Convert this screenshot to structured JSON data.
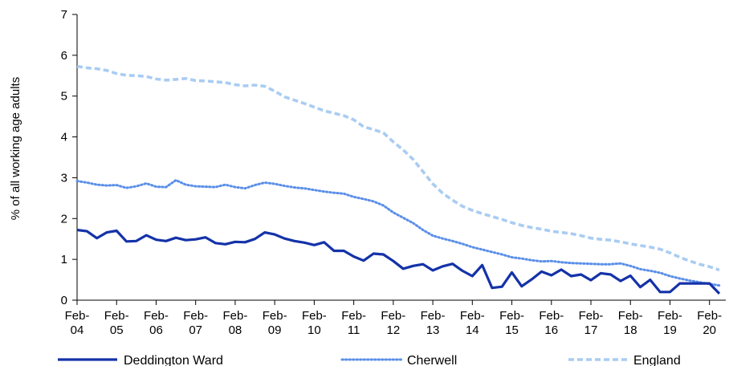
{
  "chart_data": {
    "type": "line",
    "title": "",
    "xlabel": "",
    "ylabel": "% of all working age adults",
    "ylim": [
      0,
      7
    ],
    "yticks": [
      "0",
      "1",
      "2",
      "3",
      "4",
      "5",
      "6",
      "7"
    ],
    "xlim": [
      2004,
      2020.25
    ],
    "xticks": [
      {
        "x": 2004,
        "line1": "Feb-",
        "line2": "04"
      },
      {
        "x": 2005,
        "line1": "Feb-",
        "line2": "05"
      },
      {
        "x": 2006,
        "line1": "Feb-",
        "line2": "06"
      },
      {
        "x": 2007,
        "line1": "Feb-",
        "line2": "07"
      },
      {
        "x": 2008,
        "line1": "Feb-",
        "line2": "08"
      },
      {
        "x": 2009,
        "line1": "Feb-",
        "line2": "09"
      },
      {
        "x": 2010,
        "line1": "Feb-",
        "line2": "10"
      },
      {
        "x": 2011,
        "line1": "Feb-",
        "line2": "11"
      },
      {
        "x": 2012,
        "line1": "Feb-",
        "line2": "12"
      },
      {
        "x": 2013,
        "line1": "Feb-",
        "line2": "13"
      },
      {
        "x": 2014,
        "line1": "Feb-",
        "line2": "14"
      },
      {
        "x": 2015,
        "line1": "Feb-",
        "line2": "15"
      },
      {
        "x": 2016,
        "line1": "Feb-",
        "line2": "16"
      },
      {
        "x": 2017,
        "line1": "Feb-",
        "line2": "17"
      },
      {
        "x": 2018,
        "line1": "Feb-",
        "line2": "18"
      },
      {
        "x": 2019,
        "line1": "Feb-",
        "line2": "19"
      },
      {
        "x": 2020,
        "line1": "Feb-",
        "line2": "20"
      }
    ],
    "grid": false,
    "legend": "bottom",
    "series": [
      {
        "name": "Deddington Ward",
        "color": "#1432a8",
        "style": "solid",
        "points": [
          [
            2004.0,
            1.72
          ],
          [
            2004.25,
            1.69
          ],
          [
            2004.5,
            1.52
          ],
          [
            2004.75,
            1.66
          ],
          [
            2005.0,
            1.7
          ],
          [
            2005.25,
            1.44
          ],
          [
            2005.5,
            1.45
          ],
          [
            2005.75,
            1.59
          ],
          [
            2006.0,
            1.48
          ],
          [
            2006.25,
            1.45
          ],
          [
            2006.5,
            1.53
          ],
          [
            2006.75,
            1.47
          ],
          [
            2007.0,
            1.49
          ],
          [
            2007.25,
            1.54
          ],
          [
            2007.5,
            1.4
          ],
          [
            2007.75,
            1.37
          ],
          [
            2008.0,
            1.43
          ],
          [
            2008.25,
            1.42
          ],
          [
            2008.5,
            1.5
          ],
          [
            2008.75,
            1.66
          ],
          [
            2009.0,
            1.61
          ],
          [
            2009.25,
            1.51
          ],
          [
            2009.5,
            1.45
          ],
          [
            2009.75,
            1.41
          ],
          [
            2010.0,
            1.35
          ],
          [
            2010.25,
            1.42
          ],
          [
            2010.5,
            1.21
          ],
          [
            2010.75,
            1.21
          ],
          [
            2011.0,
            1.07
          ],
          [
            2011.25,
            0.97
          ],
          [
            2011.5,
            1.14
          ],
          [
            2011.75,
            1.12
          ],
          [
            2012.0,
            0.96
          ],
          [
            2012.25,
            0.77
          ],
          [
            2012.5,
            0.84
          ],
          [
            2012.75,
            0.88
          ],
          [
            2013.0,
            0.73
          ],
          [
            2013.25,
            0.83
          ],
          [
            2013.5,
            0.89
          ],
          [
            2013.75,
            0.72
          ],
          [
            2014.0,
            0.59
          ],
          [
            2014.25,
            0.86
          ],
          [
            2014.5,
            0.3
          ],
          [
            2014.75,
            0.33
          ],
          [
            2015.0,
            0.68
          ],
          [
            2015.25,
            0.34
          ],
          [
            2015.5,
            0.51
          ],
          [
            2015.75,
            0.7
          ],
          [
            2016.0,
            0.61
          ],
          [
            2016.25,
            0.75
          ],
          [
            2016.5,
            0.59
          ],
          [
            2016.75,
            0.63
          ],
          [
            2017.0,
            0.49
          ],
          [
            2017.25,
            0.66
          ],
          [
            2017.5,
            0.63
          ],
          [
            2017.75,
            0.47
          ],
          [
            2018.0,
            0.6
          ],
          [
            2018.25,
            0.32
          ],
          [
            2018.5,
            0.5
          ],
          [
            2018.75,
            0.2
          ],
          [
            2019.0,
            0.2
          ],
          [
            2019.25,
            0.41
          ],
          [
            2019.5,
            0.41
          ],
          [
            2019.75,
            0.41
          ],
          [
            2020.0,
            0.41
          ],
          [
            2020.25,
            0.16
          ]
        ]
      },
      {
        "name": "Cherwell",
        "color": "#5b8fe8",
        "style": "dotted",
        "points": [
          [
            2004.0,
            2.92
          ],
          [
            2004.25,
            2.88
          ],
          [
            2004.5,
            2.83
          ],
          [
            2004.75,
            2.81
          ],
          [
            2005.0,
            2.82
          ],
          [
            2005.25,
            2.75
          ],
          [
            2005.5,
            2.79
          ],
          [
            2005.75,
            2.86
          ],
          [
            2006.0,
            2.78
          ],
          [
            2006.25,
            2.77
          ],
          [
            2006.5,
            2.94
          ],
          [
            2006.75,
            2.83
          ],
          [
            2007.0,
            2.79
          ],
          [
            2007.25,
            2.78
          ],
          [
            2007.5,
            2.77
          ],
          [
            2007.75,
            2.83
          ],
          [
            2008.0,
            2.77
          ],
          [
            2008.25,
            2.74
          ],
          [
            2008.5,
            2.82
          ],
          [
            2008.75,
            2.88
          ],
          [
            2009.0,
            2.85
          ],
          [
            2009.25,
            2.8
          ],
          [
            2009.5,
            2.76
          ],
          [
            2009.75,
            2.74
          ],
          [
            2010.0,
            2.7
          ],
          [
            2010.25,
            2.66
          ],
          [
            2010.5,
            2.63
          ],
          [
            2010.75,
            2.61
          ],
          [
            2011.0,
            2.53
          ],
          [
            2011.25,
            2.48
          ],
          [
            2011.5,
            2.42
          ],
          [
            2011.75,
            2.32
          ],
          [
            2012.0,
            2.15
          ],
          [
            2012.25,
            2.02
          ],
          [
            2012.5,
            1.89
          ],
          [
            2012.75,
            1.72
          ],
          [
            2013.0,
            1.58
          ],
          [
            2013.25,
            1.51
          ],
          [
            2013.5,
            1.45
          ],
          [
            2013.75,
            1.38
          ],
          [
            2014.0,
            1.3
          ],
          [
            2014.25,
            1.24
          ],
          [
            2014.5,
            1.18
          ],
          [
            2014.75,
            1.12
          ],
          [
            2015.0,
            1.05
          ],
          [
            2015.25,
            1.02
          ],
          [
            2015.5,
            0.98
          ],
          [
            2015.75,
            0.95
          ],
          [
            2016.0,
            0.96
          ],
          [
            2016.25,
            0.93
          ],
          [
            2016.5,
            0.91
          ],
          [
            2016.75,
            0.9
          ],
          [
            2017.0,
            0.89
          ],
          [
            2017.25,
            0.88
          ],
          [
            2017.5,
            0.88
          ],
          [
            2017.75,
            0.9
          ],
          [
            2018.0,
            0.84
          ],
          [
            2018.25,
            0.76
          ],
          [
            2018.5,
            0.72
          ],
          [
            2018.75,
            0.67
          ],
          [
            2019.0,
            0.59
          ],
          [
            2019.25,
            0.53
          ],
          [
            2019.5,
            0.48
          ],
          [
            2019.75,
            0.44
          ],
          [
            2020.0,
            0.4
          ],
          [
            2020.25,
            0.36
          ]
        ]
      },
      {
        "name": "England",
        "color": "#a9ccf2",
        "style": "dashed",
        "points": [
          [
            2004.0,
            5.73
          ],
          [
            2004.25,
            5.69
          ],
          [
            2004.5,
            5.67
          ],
          [
            2004.75,
            5.63
          ],
          [
            2005.0,
            5.55
          ],
          [
            2005.25,
            5.51
          ],
          [
            2005.5,
            5.5
          ],
          [
            2005.75,
            5.48
          ],
          [
            2006.0,
            5.42
          ],
          [
            2006.25,
            5.39
          ],
          [
            2006.5,
            5.41
          ],
          [
            2006.75,
            5.43
          ],
          [
            2007.0,
            5.38
          ],
          [
            2007.25,
            5.37
          ],
          [
            2007.5,
            5.35
          ],
          [
            2007.75,
            5.33
          ],
          [
            2008.0,
            5.28
          ],
          [
            2008.25,
            5.25
          ],
          [
            2008.5,
            5.27
          ],
          [
            2008.75,
            5.24
          ],
          [
            2009.0,
            5.12
          ],
          [
            2009.25,
            4.98
          ],
          [
            2009.5,
            4.9
          ],
          [
            2009.75,
            4.82
          ],
          [
            2010.0,
            4.73
          ],
          [
            2010.25,
            4.64
          ],
          [
            2010.5,
            4.58
          ],
          [
            2010.75,
            4.52
          ],
          [
            2011.0,
            4.42
          ],
          [
            2011.25,
            4.25
          ],
          [
            2011.5,
            4.18
          ],
          [
            2011.75,
            4.1
          ],
          [
            2012.0,
            3.88
          ],
          [
            2012.25,
            3.68
          ],
          [
            2012.5,
            3.45
          ],
          [
            2012.75,
            3.15
          ],
          [
            2013.0,
            2.85
          ],
          [
            2013.25,
            2.62
          ],
          [
            2013.5,
            2.45
          ],
          [
            2013.75,
            2.3
          ],
          [
            2014.0,
            2.2
          ],
          [
            2014.25,
            2.12
          ],
          [
            2014.5,
            2.05
          ],
          [
            2014.75,
            1.98
          ],
          [
            2015.0,
            1.9
          ],
          [
            2015.25,
            1.83
          ],
          [
            2015.5,
            1.78
          ],
          [
            2015.75,
            1.74
          ],
          [
            2016.0,
            1.69
          ],
          [
            2016.25,
            1.66
          ],
          [
            2016.5,
            1.63
          ],
          [
            2016.75,
            1.58
          ],
          [
            2017.0,
            1.52
          ],
          [
            2017.25,
            1.49
          ],
          [
            2017.5,
            1.47
          ],
          [
            2017.75,
            1.43
          ],
          [
            2018.0,
            1.38
          ],
          [
            2018.25,
            1.34
          ],
          [
            2018.5,
            1.3
          ],
          [
            2018.75,
            1.25
          ],
          [
            2019.0,
            1.16
          ],
          [
            2019.25,
            1.05
          ],
          [
            2019.5,
            0.96
          ],
          [
            2019.75,
            0.88
          ],
          [
            2020.0,
            0.82
          ],
          [
            2020.25,
            0.74
          ]
        ]
      }
    ]
  }
}
